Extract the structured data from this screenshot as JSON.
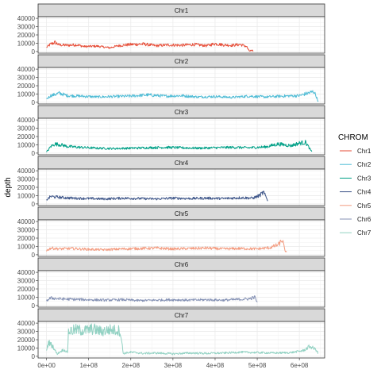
{
  "chart_data": {
    "type": "line",
    "facet_by": "CHROM",
    "xlabel": "",
    "ylabel": "depth",
    "xlim": [
      -20000000,
      660000000
    ],
    "ylim": [
      -2000,
      42000
    ],
    "x_ticks": [
      0,
      100000000,
      200000000,
      300000000,
      400000000,
      500000000,
      600000000
    ],
    "x_tick_labels": [
      "0e+00",
      "1e+08",
      "2e+08",
      "3e+08",
      "4e+08",
      "5e+08",
      "6e+08"
    ],
    "y_ticks": [
      0,
      10000,
      20000,
      30000,
      40000
    ],
    "y_tick_labels": [
      "0",
      "10000",
      "20000",
      "30000",
      "40000"
    ],
    "grid": true,
    "legend": {
      "title": "CHROM",
      "position": "right"
    },
    "series": [
      {
        "name": "Chr1",
        "color": "#E64B35",
        "x_end": 490000000,
        "points": [
          [
            0,
            5000
          ],
          [
            10000000,
            9000
          ],
          [
            20000000,
            11000
          ],
          [
            30000000,
            8000
          ],
          [
            50000000,
            7500
          ],
          [
            70000000,
            8200
          ],
          [
            90000000,
            6000
          ],
          [
            120000000,
            6500
          ],
          [
            150000000,
            4500
          ],
          [
            170000000,
            7000
          ],
          [
            200000000,
            8500
          ],
          [
            230000000,
            9000
          ],
          [
            260000000,
            7000
          ],
          [
            290000000,
            8000
          ],
          [
            320000000,
            7500
          ],
          [
            350000000,
            8500
          ],
          [
            380000000,
            7000
          ],
          [
            400000000,
            9500
          ],
          [
            420000000,
            8000
          ],
          [
            440000000,
            7500
          ],
          [
            460000000,
            8500
          ],
          [
            475000000,
            6000
          ],
          [
            480000000,
            1000
          ],
          [
            490000000,
            500
          ]
        ]
      },
      {
        "name": "Chr2",
        "color": "#4DBBD5",
        "x_end": 645000000,
        "points": [
          [
            0,
            4000
          ],
          [
            10000000,
            8000
          ],
          [
            30000000,
            11000
          ],
          [
            50000000,
            8000
          ],
          [
            80000000,
            7500
          ],
          [
            120000000,
            6500
          ],
          [
            160000000,
            7000
          ],
          [
            200000000,
            7500
          ],
          [
            240000000,
            9000
          ],
          [
            280000000,
            7500
          ],
          [
            320000000,
            8000
          ],
          [
            360000000,
            6500
          ],
          [
            400000000,
            7000
          ],
          [
            440000000,
            6000
          ],
          [
            480000000,
            7500
          ],
          [
            520000000,
            6500
          ],
          [
            560000000,
            7500
          ],
          [
            600000000,
            8000
          ],
          [
            620000000,
            11000
          ],
          [
            635000000,
            13000
          ],
          [
            645000000,
            1000
          ]
        ]
      },
      {
        "name": "Chr3",
        "color": "#00A087",
        "x_end": 630000000,
        "points": [
          [
            0,
            1000
          ],
          [
            10000000,
            8000
          ],
          [
            20000000,
            11000
          ],
          [
            35000000,
            10000
          ],
          [
            50000000,
            8000
          ],
          [
            80000000,
            7000
          ],
          [
            120000000,
            6000
          ],
          [
            160000000,
            5500
          ],
          [
            200000000,
            6000
          ],
          [
            240000000,
            6500
          ],
          [
            280000000,
            7000
          ],
          [
            320000000,
            6500
          ],
          [
            360000000,
            6000
          ],
          [
            400000000,
            6500
          ],
          [
            440000000,
            7000
          ],
          [
            480000000,
            6500
          ],
          [
            520000000,
            7500
          ],
          [
            550000000,
            11000
          ],
          [
            580000000,
            9000
          ],
          [
            600000000,
            12000
          ],
          [
            615000000,
            13000
          ],
          [
            625000000,
            5000
          ],
          [
            630000000,
            1000
          ]
        ]
      },
      {
        "name": "Chr4",
        "color": "#3C5488",
        "x_end": 525000000,
        "points": [
          [
            0,
            5000
          ],
          [
            10000000,
            9000
          ],
          [
            30000000,
            8000
          ],
          [
            60000000,
            7000
          ],
          [
            100000000,
            6500
          ],
          [
            140000000,
            6000
          ],
          [
            180000000,
            7000
          ],
          [
            220000000,
            6500
          ],
          [
            260000000,
            6000
          ],
          [
            300000000,
            7000
          ],
          [
            340000000,
            6500
          ],
          [
            380000000,
            7000
          ],
          [
            420000000,
            6500
          ],
          [
            460000000,
            7500
          ],
          [
            490000000,
            7000
          ],
          [
            505000000,
            10000
          ],
          [
            515000000,
            14000
          ],
          [
            525000000,
            4000
          ]
        ]
      },
      {
        "name": "Chr5",
        "color": "#F39B7F",
        "x_end": 570000000,
        "points": [
          [
            0,
            5000
          ],
          [
            10000000,
            8000
          ],
          [
            30000000,
            7000
          ],
          [
            60000000,
            7500
          ],
          [
            100000000,
            6500
          ],
          [
            140000000,
            6000
          ],
          [
            180000000,
            7000
          ],
          [
            220000000,
            7500
          ],
          [
            260000000,
            8000
          ],
          [
            300000000,
            7000
          ],
          [
            340000000,
            7500
          ],
          [
            380000000,
            8000
          ],
          [
            420000000,
            7000
          ],
          [
            460000000,
            7500
          ],
          [
            500000000,
            7000
          ],
          [
            530000000,
            8500
          ],
          [
            550000000,
            12000
          ],
          [
            560000000,
            18000
          ],
          [
            565000000,
            6000
          ],
          [
            570000000,
            2000
          ]
        ]
      },
      {
        "name": "Chr6",
        "color": "#8491B4",
        "x_end": 500000000,
        "points": [
          [
            0,
            6000
          ],
          [
            10000000,
            9000
          ],
          [
            30000000,
            8000
          ],
          [
            60000000,
            7500
          ],
          [
            100000000,
            7000
          ],
          [
            140000000,
            6500
          ],
          [
            180000000,
            7000
          ],
          [
            220000000,
            6000
          ],
          [
            260000000,
            6500
          ],
          [
            300000000,
            7000
          ],
          [
            340000000,
            6500
          ],
          [
            380000000,
            7000
          ],
          [
            420000000,
            6500
          ],
          [
            460000000,
            7500
          ],
          [
            480000000,
            8000
          ],
          [
            495000000,
            10000
          ],
          [
            500000000,
            3000
          ]
        ]
      },
      {
        "name": "Chr7",
        "color": "#91D1C2",
        "x_end": 645000000,
        "points": [
          [
            0,
            8000
          ],
          [
            5000000,
            17000
          ],
          [
            15000000,
            12000
          ],
          [
            25000000,
            3000
          ],
          [
            40000000,
            8000
          ],
          [
            50000000,
            5000
          ],
          [
            52000000,
            30000
          ],
          [
            70000000,
            32000
          ],
          [
            90000000,
            31000
          ],
          [
            110000000,
            33000
          ],
          [
            130000000,
            30000
          ],
          [
            150000000,
            32000
          ],
          [
            175000000,
            31000
          ],
          [
            182000000,
            3500
          ],
          [
            200000000,
            5000
          ],
          [
            230000000,
            3500
          ],
          [
            260000000,
            4000
          ],
          [
            300000000,
            3000
          ],
          [
            340000000,
            4000
          ],
          [
            380000000,
            3500
          ],
          [
            420000000,
            4000
          ],
          [
            460000000,
            5000
          ],
          [
            500000000,
            4500
          ],
          [
            540000000,
            4000
          ],
          [
            580000000,
            4500
          ],
          [
            610000000,
            7000
          ],
          [
            625000000,
            12000
          ],
          [
            640000000,
            8000
          ],
          [
            645000000,
            3000
          ]
        ]
      }
    ]
  }
}
